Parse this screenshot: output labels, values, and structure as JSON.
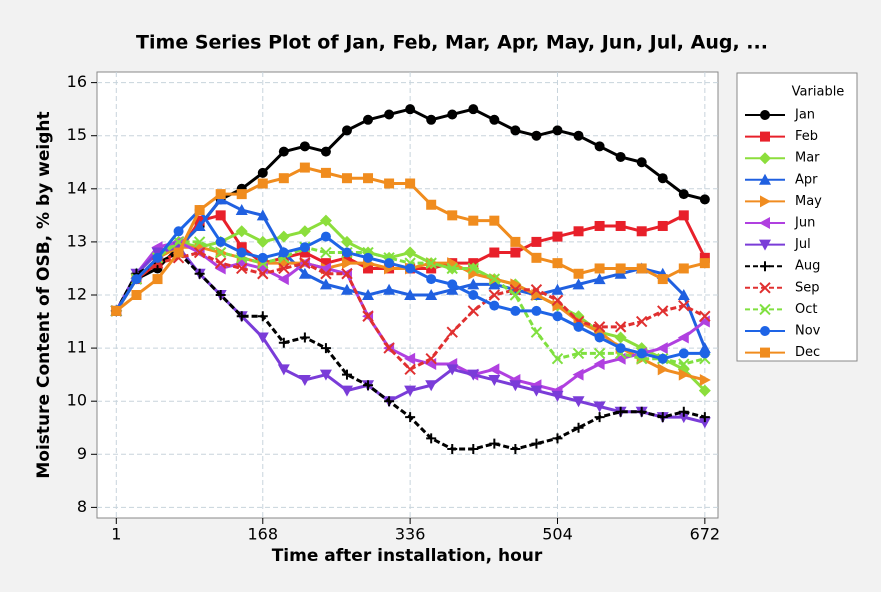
{
  "chart_data": {
    "type": "line",
    "title": "Time Series Plot of Jan, Feb, Mar, Apr, May, Jun, Jul, Aug, ...",
    "x_label": "Time after installation, hour",
    "y_label": "Moisture Content of OSB, % by weight",
    "legend_title": "Variable",
    "legend": "right",
    "grid": true,
    "x": [
      1,
      24,
      48,
      72,
      96,
      120,
      144,
      168,
      192,
      216,
      240,
      264,
      288,
      312,
      336,
      360,
      384,
      408,
      432,
      456,
      480,
      504,
      528,
      552,
      576,
      600,
      624,
      648,
      672
    ],
    "xlim": [
      -21,
      687
    ],
    "xticks": [
      1,
      168,
      336,
      504,
      672
    ],
    "ylim": [
      7.8,
      16.2
    ],
    "yticks": [
      8,
      9,
      10,
      11,
      12,
      13,
      14,
      15,
      16
    ],
    "series": [
      {
        "name": "Jan",
        "color": "#000000",
        "marker": "circle",
        "line_style": "solid",
        "values": [
          11.7,
          12.3,
          12.5,
          12.9,
          13.3,
          13.8,
          14.0,
          14.3,
          14.7,
          14.8,
          14.7,
          15.1,
          15.3,
          15.4,
          15.5,
          15.3,
          15.4,
          15.5,
          15.3,
          15.1,
          15.0,
          15.1,
          15.0,
          14.8,
          14.6,
          14.5,
          14.2,
          13.9,
          13.8
        ]
      },
      {
        "name": "Feb",
        "color": "#e8202a",
        "marker": "square",
        "line_style": "solid",
        "values": [
          11.7,
          12.3,
          12.6,
          12.8,
          13.4,
          13.5,
          12.9,
          12.6,
          12.7,
          12.8,
          12.6,
          12.7,
          12.5,
          12.5,
          12.5,
          12.5,
          12.6,
          12.6,
          12.8,
          12.8,
          13.0,
          13.1,
          13.2,
          13.3,
          13.3,
          13.2,
          13.3,
          13.5,
          12.7
        ]
      },
      {
        "name": "Mar",
        "color": "#8cde3c",
        "marker": "diamond",
        "line_style": "solid",
        "values": [
          11.7,
          12.4,
          12.8,
          13.0,
          12.9,
          13.0,
          13.2,
          13.0,
          13.1,
          13.2,
          13.4,
          13.0,
          12.8,
          12.7,
          12.8,
          12.6,
          12.5,
          12.5,
          12.3,
          12.2,
          12.0,
          11.8,
          11.6,
          11.3,
          11.2,
          11.0,
          10.8,
          10.6,
          10.2
        ]
      },
      {
        "name": "Apr",
        "color": "#2060e0",
        "marker": "triangle-up",
        "line_style": "solid",
        "values": [
          11.7,
          12.4,
          12.8,
          12.9,
          13.3,
          13.8,
          13.6,
          13.5,
          12.8,
          12.4,
          12.2,
          12.1,
          12.0,
          12.1,
          12.0,
          12.0,
          12.1,
          12.2,
          12.2,
          12.1,
          12.0,
          12.1,
          12.2,
          12.3,
          12.4,
          12.5,
          12.4,
          12.0,
          11.0
        ]
      },
      {
        "name": "May",
        "color": "#f08c20",
        "marker": "triangle-right",
        "line_style": "solid",
        "values": [
          11.7,
          12.3,
          12.7,
          12.9,
          12.9,
          12.8,
          12.7,
          12.6,
          12.6,
          12.6,
          12.5,
          12.6,
          12.6,
          12.5,
          12.5,
          12.6,
          12.6,
          12.4,
          12.3,
          12.2,
          12.0,
          11.8,
          11.5,
          11.3,
          11.0,
          10.8,
          10.6,
          10.5,
          10.4
        ]
      },
      {
        "name": "Jun",
        "color": "#b040e0",
        "marker": "triangle-left",
        "line_style": "solid",
        "values": [
          11.7,
          12.4,
          12.9,
          13.0,
          12.8,
          12.5,
          12.6,
          12.5,
          12.3,
          12.6,
          12.5,
          12.4,
          11.6,
          11.0,
          10.8,
          10.7,
          10.7,
          10.5,
          10.6,
          10.4,
          10.3,
          10.2,
          10.5,
          10.7,
          10.8,
          10.9,
          11.0,
          11.2,
          11.5
        ]
      },
      {
        "name": "Jul",
        "color": "#7a3cd8",
        "marker": "triangle-down",
        "line_style": "solid",
        "values": [
          11.7,
          12.4,
          12.8,
          12.9,
          12.4,
          12.0,
          11.6,
          11.2,
          10.6,
          10.4,
          10.5,
          10.2,
          10.3,
          10.0,
          10.2,
          10.3,
          10.6,
          10.5,
          10.4,
          10.3,
          10.2,
          10.1,
          10.0,
          9.9,
          9.8,
          9.8,
          9.7,
          9.7,
          9.6
        ]
      },
      {
        "name": "Aug",
        "color": "#000000",
        "marker": "plus",
        "line_style": "dashed",
        "values": [
          11.7,
          12.4,
          12.6,
          12.8,
          12.4,
          12.0,
          11.6,
          11.6,
          11.1,
          11.2,
          11.0,
          10.5,
          10.3,
          10.0,
          9.7,
          9.3,
          9.1,
          9.1,
          9.2,
          9.1,
          9.2,
          9.3,
          9.5,
          9.7,
          9.8,
          9.8,
          9.7,
          9.8,
          9.7
        ]
      },
      {
        "name": "Sep",
        "color": "#e03030",
        "marker": "cross",
        "line_style": "dashed",
        "values": [
          11.7,
          12.3,
          12.6,
          12.7,
          12.8,
          12.6,
          12.5,
          12.4,
          12.5,
          12.6,
          12.4,
          12.4,
          11.6,
          11.0,
          10.6,
          10.8,
          11.3,
          11.7,
          12.0,
          12.1,
          12.1,
          11.9,
          11.5,
          11.4,
          11.4,
          11.5,
          11.7,
          11.8,
          11.6
        ]
      },
      {
        "name": "Oct",
        "color": "#80e040",
        "marker": "cross",
        "line_style": "dashed",
        "values": [
          11.7,
          12.3,
          12.7,
          13.0,
          13.0,
          12.8,
          12.7,
          12.6,
          12.7,
          12.9,
          12.8,
          12.8,
          12.8,
          12.7,
          12.6,
          12.6,
          12.5,
          12.5,
          12.3,
          12.0,
          11.3,
          10.8,
          10.9,
          10.9,
          10.9,
          10.8,
          10.8,
          10.7,
          10.8
        ]
      },
      {
        "name": "Nov",
        "color": "#1e64e6",
        "marker": "circle",
        "line_style": "solid",
        "values": [
          11.7,
          12.3,
          12.7,
          13.2,
          13.6,
          13.0,
          12.8,
          12.7,
          12.8,
          12.9,
          13.1,
          12.8,
          12.7,
          12.6,
          12.5,
          12.3,
          12.2,
          12.0,
          11.8,
          11.7,
          11.7,
          11.6,
          11.4,
          11.2,
          11.0,
          10.9,
          10.8,
          10.9,
          10.9
        ]
      },
      {
        "name": "Dec",
        "color": "#f08c1e",
        "marker": "square",
        "line_style": "solid",
        "values": [
          11.7,
          12.0,
          12.3,
          12.8,
          13.6,
          13.9,
          13.9,
          14.1,
          14.2,
          14.4,
          14.3,
          14.2,
          14.2,
          14.1,
          14.1,
          13.7,
          13.5,
          13.4,
          13.4,
          13.0,
          12.7,
          12.6,
          12.4,
          12.5,
          12.5,
          12.5,
          12.3,
          12.5,
          12.6
        ]
      }
    ]
  }
}
